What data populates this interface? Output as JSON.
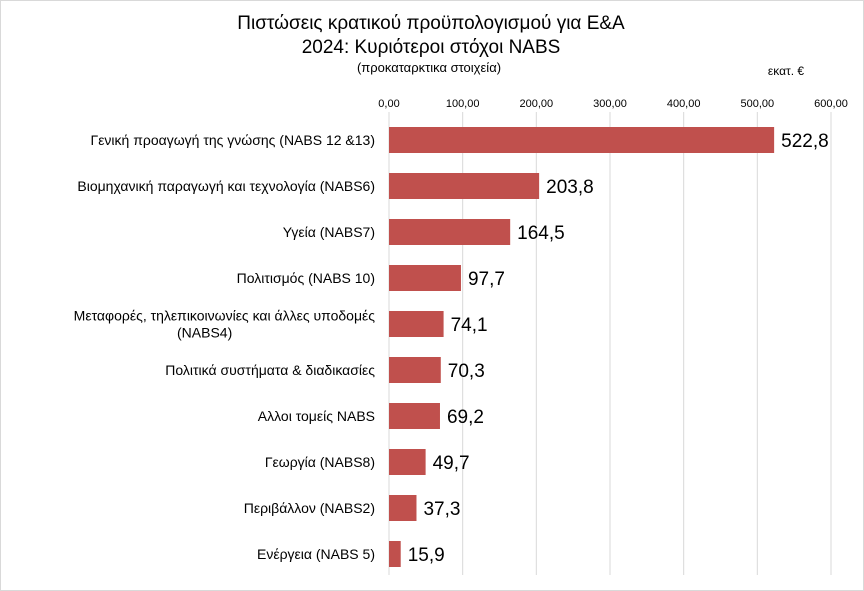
{
  "chart_data": {
    "type": "bar",
    "orientation": "horizontal",
    "title_line1": "Πιστώσεις κρατικού προϋπολογισμού για Ε&Α",
    "title_line2": "2024: Κυριότεροι στόχοι NABS",
    "subtitle": "(προκαταρκτικα στοιχεία)",
    "unit": "εκατ. €",
    "x_ticks": [
      "0,00",
      "100,00",
      "200,00",
      "300,00",
      "400,00",
      "500,00",
      "600,00"
    ],
    "xlim": [
      0,
      600
    ],
    "grid": true,
    "bar_color": "#c0504d",
    "categories": [
      [
        "Γενική προαγωγή της γνώσης (NABS 12 &13)"
      ],
      [
        "Βιομηχανική παραγωγή και τεχνολογία (NABS6)"
      ],
      [
        "Υγεία (NABS7)"
      ],
      [
        "Πολιτισμός (NABS 10)"
      ],
      [
        "Μεταφορές, τηλεπικοινωνίες και άλλες υποδομές",
        "(NABS4)"
      ],
      [
        "Πολιτικά συστήματα & διαδικασίες"
      ],
      [
        "Αλλοι τομείς NABS"
      ],
      [
        "Γεωργία (NABS8)"
      ],
      [
        "Περιβάλλον (NABS2)"
      ],
      [
        "Ενέργεια (NABS 5)"
      ]
    ],
    "values": [
      522.8,
      203.8,
      164.5,
      97.7,
      74.1,
      70.3,
      69.2,
      49.7,
      37.3,
      15.9
    ],
    "value_labels": [
      "522,8",
      "203,8",
      "164,5",
      "97,7",
      "74,1",
      "70,3",
      "69,2",
      "49,7",
      "37,3",
      "15,9"
    ]
  }
}
